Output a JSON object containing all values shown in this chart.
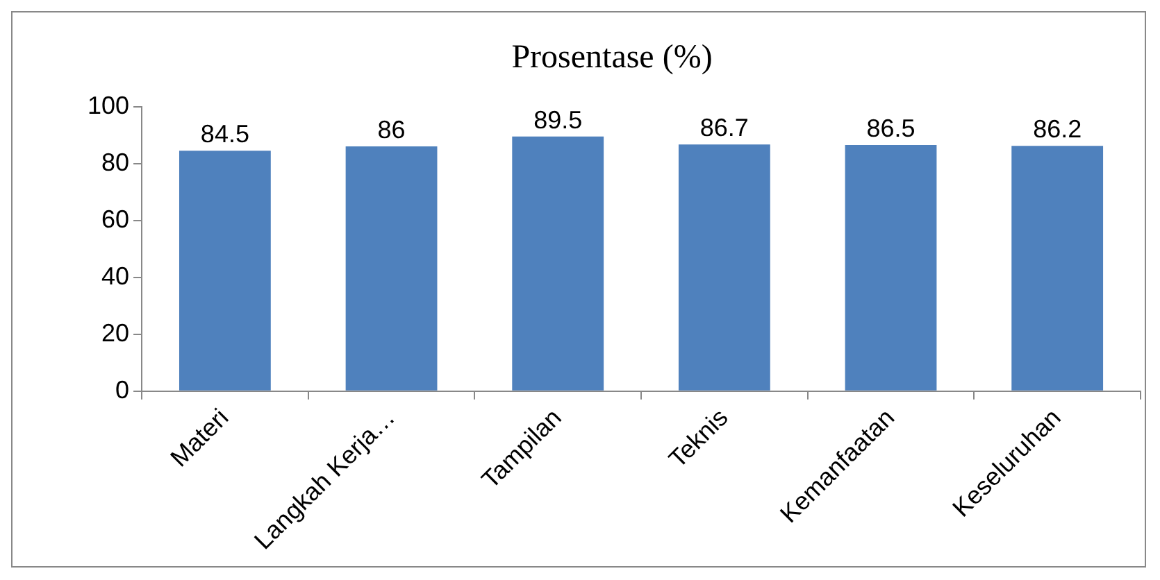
{
  "chart_data": {
    "type": "bar",
    "title": "Prosentase (%)",
    "categories": [
      "Materi",
      "Langkah Kerja…",
      "Tampilan",
      "Teknis",
      "Kemanfaatan",
      "Keseluruhan"
    ],
    "values": [
      84.5,
      86,
      89.5,
      86.7,
      86.5,
      86.2
    ],
    "color": "#4f81bd",
    "ylim": [
      0,
      100
    ],
    "yticks": [
      0,
      20,
      40,
      60,
      80,
      100
    ],
    "grid": false,
    "data_labels": true
  }
}
